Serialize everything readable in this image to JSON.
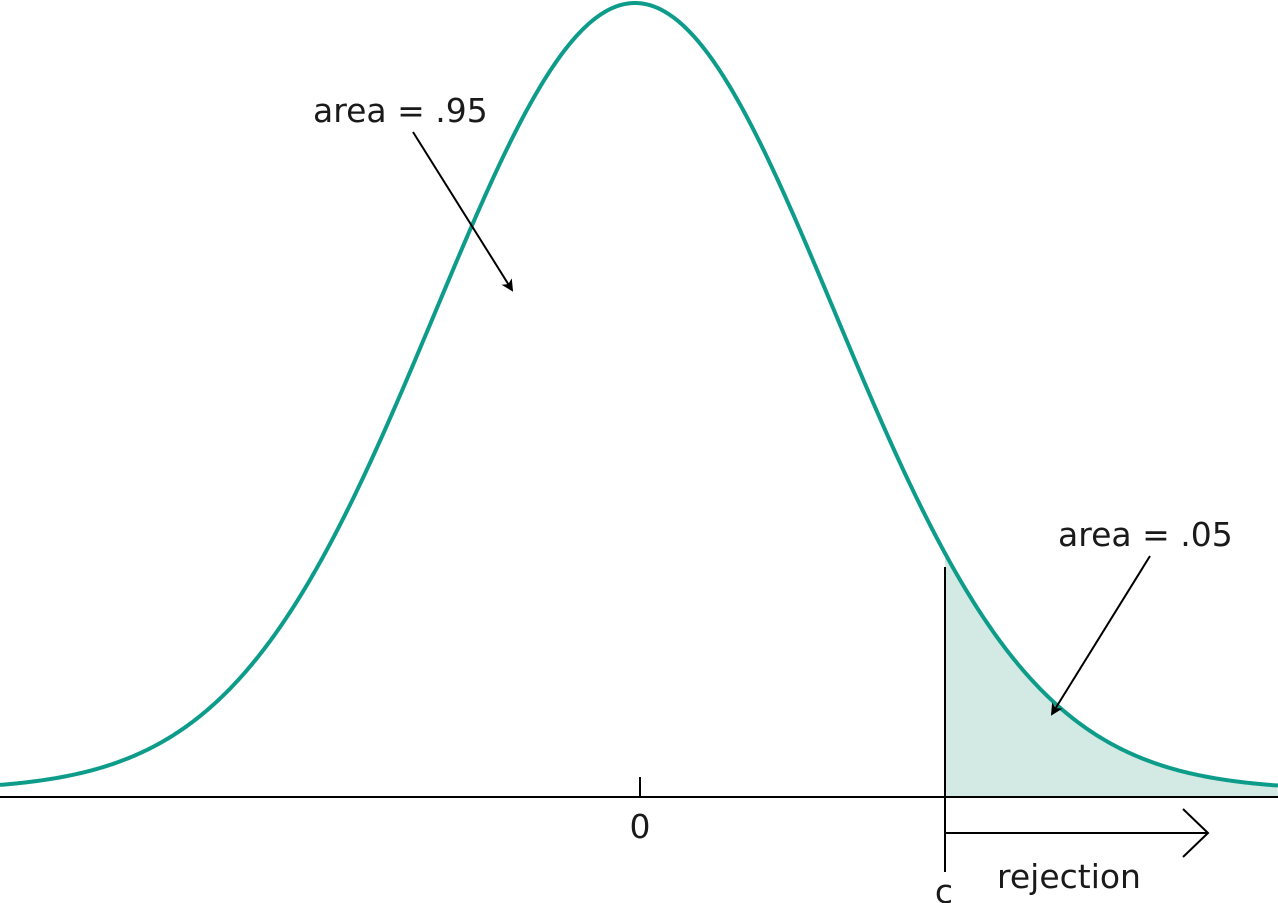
{
  "diagram": {
    "type": "normal-distribution-rejection-region",
    "curve_color": "#0e9c8a",
    "shade_color": "#d3e9e3",
    "axis_color": "#000000",
    "annotations": {
      "center_area": "area = .95",
      "tail_area": "area = .05"
    },
    "axis": {
      "center_tick_label": "0",
      "critical_value_label": "c",
      "region_label": "rejection"
    }
  }
}
